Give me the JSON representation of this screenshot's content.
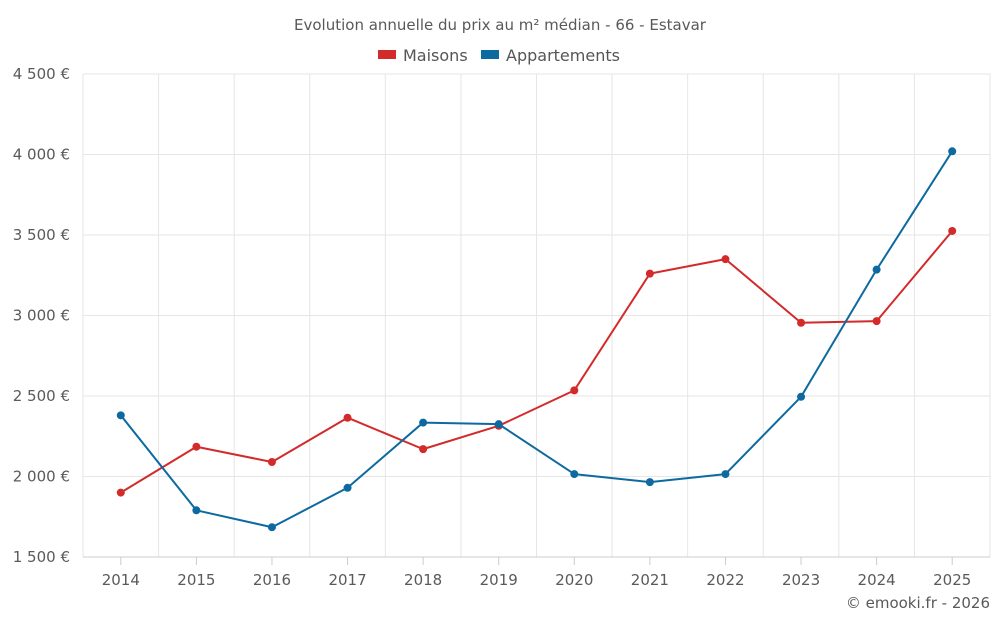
{
  "chart_data": {
    "type": "line",
    "title": "Evolution annuelle du prix au m² médian - 66 - Estavar",
    "xlabel": "",
    "ylabel": "",
    "categories": [
      "2014",
      "2015",
      "2016",
      "2017",
      "2018",
      "2019",
      "2020",
      "2021",
      "2022",
      "2023",
      "2024",
      "2025"
    ],
    "ylim": [
      1500,
      4500
    ],
    "yticks": [
      1500,
      2000,
      2500,
      3000,
      3500,
      4000,
      4500
    ],
    "ytick_labels": [
      "1 500 €",
      "2 000 €",
      "2 500 €",
      "3 000 €",
      "3 500 €",
      "4 000 €",
      "4 500 €"
    ],
    "grid": true,
    "legend_position": "top-center",
    "series": [
      {
        "name": "Maisons",
        "color": "#d32a2a",
        "values": [
          1900,
          2185,
          2090,
          2365,
          2170,
          2315,
          2535,
          3260,
          3350,
          2955,
          2965,
          3525
        ]
      },
      {
        "name": "Appartements",
        "color": "#0d6aa0",
        "values": [
          2380,
          1790,
          1685,
          1930,
          2335,
          2325,
          2015,
          1965,
          2015,
          2495,
          3285,
          4020
        ]
      }
    ]
  },
  "footer": {
    "copyright": "© emooki.fr - 2026"
  }
}
